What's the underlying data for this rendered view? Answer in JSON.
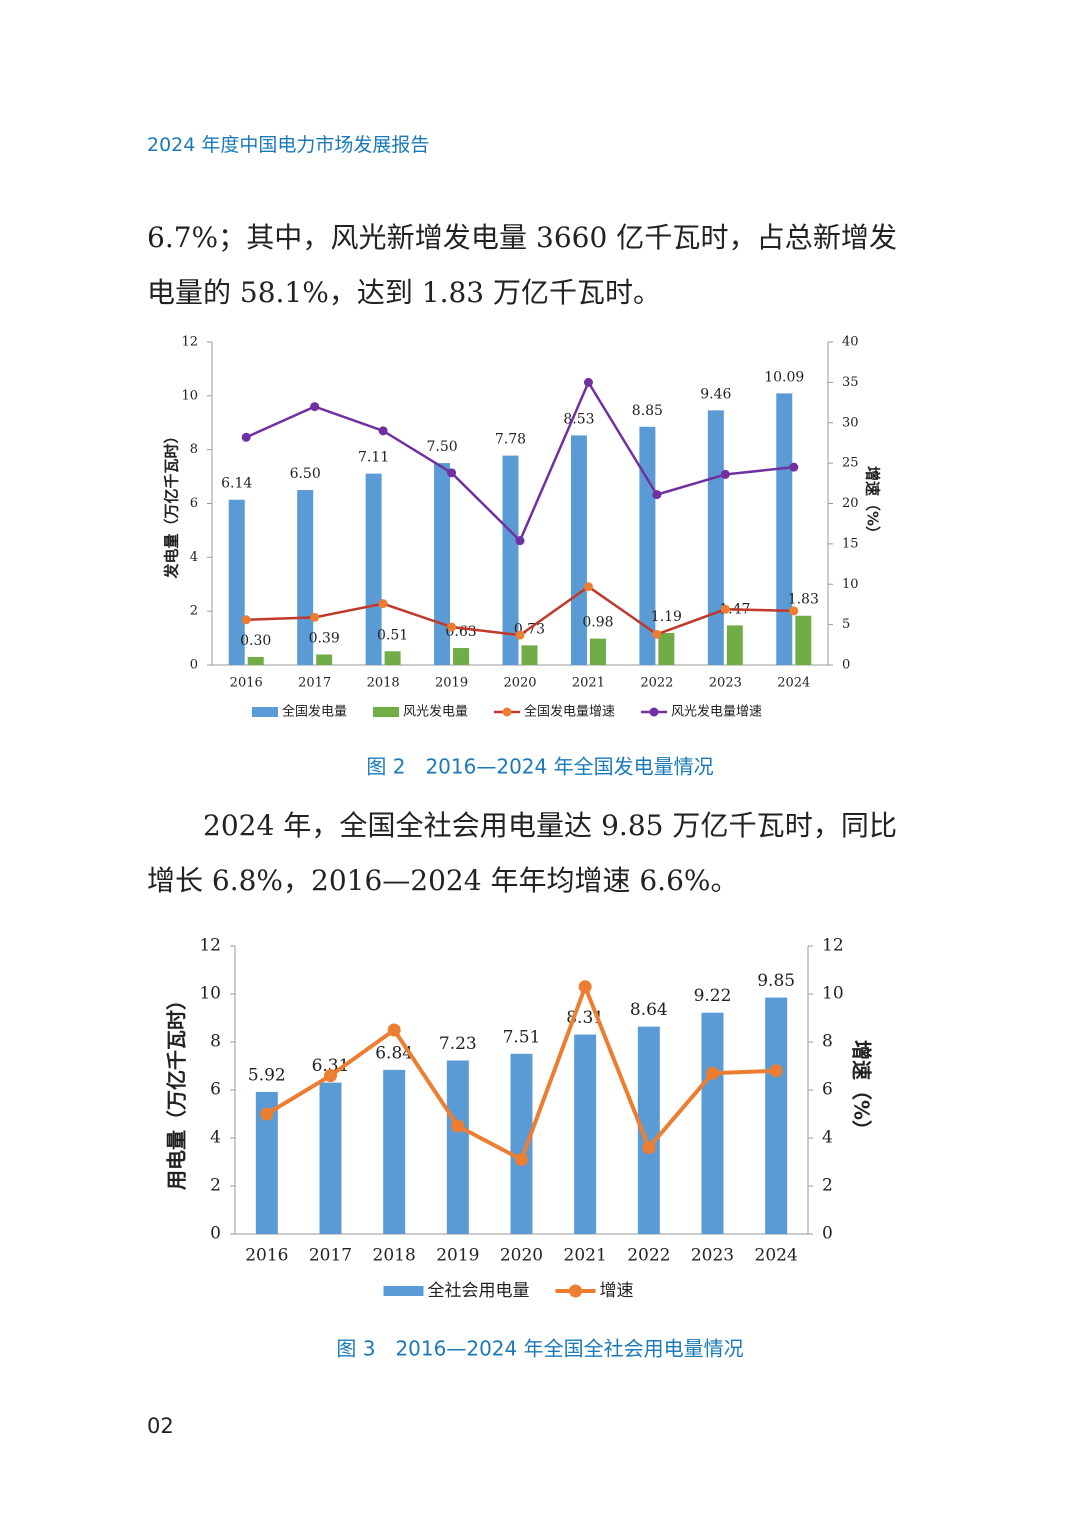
{
  "header": {
    "title": "2024 年度中国电力市场发展报告"
  },
  "paragraphs": [
    "6.7%；其中，风光新增发电量 3660 亿千瓦时，占总新增发电量的 58.1%，达到 1.83 万亿千瓦时。",
    "2024 年，全国全社会用电量达 9.85 万亿千瓦时，同比增长 6.8%，2016—2024 年年均增速 6.6%。"
  ],
  "page_number": "02",
  "chart_data": [
    {
      "type": "combo",
      "title": "图 2　2016—2024 年全国发电量情况",
      "categories": [
        "2016",
        "2017",
        "2018",
        "2019",
        "2020",
        "2021",
        "2022",
        "2023",
        "2024"
      ],
      "ylabel": "发电量（万亿千瓦时）",
      "y2label": "增速（%）",
      "ylim": [
        0,
        12
      ],
      "yticks": [
        0,
        2,
        4,
        6,
        8,
        10,
        12
      ],
      "y2lim": [
        0,
        40
      ],
      "y2ticks": [
        0,
        5,
        10,
        15,
        20,
        25,
        30,
        35,
        40
      ],
      "series": [
        {
          "name": "全国发电量",
          "type": "bar",
          "color": "#5b9bd5",
          "values": [
            6.14,
            6.5,
            7.11,
            7.5,
            7.78,
            8.53,
            8.85,
            9.46,
            10.09
          ],
          "value_labels": [
            "6.14",
            "6.50",
            "7.11",
            "7.50",
            "7.78",
            "8.53",
            "8.85",
            "9.46",
            "10.09"
          ]
        },
        {
          "name": "风光发电量",
          "type": "bar",
          "color": "#70ad47",
          "values": [
            0.3,
            0.39,
            0.51,
            0.63,
            0.73,
            0.98,
            1.19,
            1.47,
            1.83
          ],
          "value_labels": [
            "0.30",
            "0.39",
            "0.51",
            "0.63",
            "0.73",
            "0.98",
            "1.19",
            "1.47",
            "1.83"
          ]
        },
        {
          "name": "全国发电量增速",
          "type": "line",
          "axis": "y2",
          "color": "#c0392b",
          "marker_color": "#ed7d31",
          "values": [
            5.6,
            5.9,
            7.6,
            4.7,
            3.7,
            9.7,
            3.8,
            6.9,
            6.7
          ]
        },
        {
          "name": "风光发电量增速",
          "type": "line",
          "axis": "y2",
          "color": "#7030a0",
          "marker_color": "#7030a0",
          "values": [
            28.2,
            32.0,
            29.0,
            23.8,
            15.4,
            35.0,
            21.1,
            23.6,
            24.5
          ]
        }
      ]
    },
    {
      "type": "combo",
      "title": "图 3　2016—2024 年全国全社会用电量情况",
      "categories": [
        "2016",
        "2017",
        "2018",
        "2019",
        "2020",
        "2021",
        "2022",
        "2023",
        "2024"
      ],
      "ylabel": "用电量（万亿千瓦时）",
      "y2label": "增速（%）",
      "ylim": [
        0,
        12
      ],
      "yticks": [
        0,
        2,
        4,
        6,
        8,
        10,
        12
      ],
      "y2lim": [
        0,
        12
      ],
      "y2ticks": [
        0,
        2,
        4,
        6,
        8,
        10,
        12
      ],
      "series": [
        {
          "name": "全社会用电量",
          "type": "bar",
          "color": "#5b9bd5",
          "values": [
            5.92,
            6.31,
            6.84,
            7.23,
            7.51,
            8.31,
            8.64,
            9.22,
            9.85
          ]
        },
        {
          "name": "增速",
          "type": "line",
          "axis": "y2",
          "color": "#ed7d31",
          "marker_color": "#ed7d31",
          "values": [
            5.0,
            6.6,
            8.5,
            4.5,
            3.1,
            10.3,
            3.6,
            6.7,
            6.8
          ]
        }
      ]
    }
  ]
}
